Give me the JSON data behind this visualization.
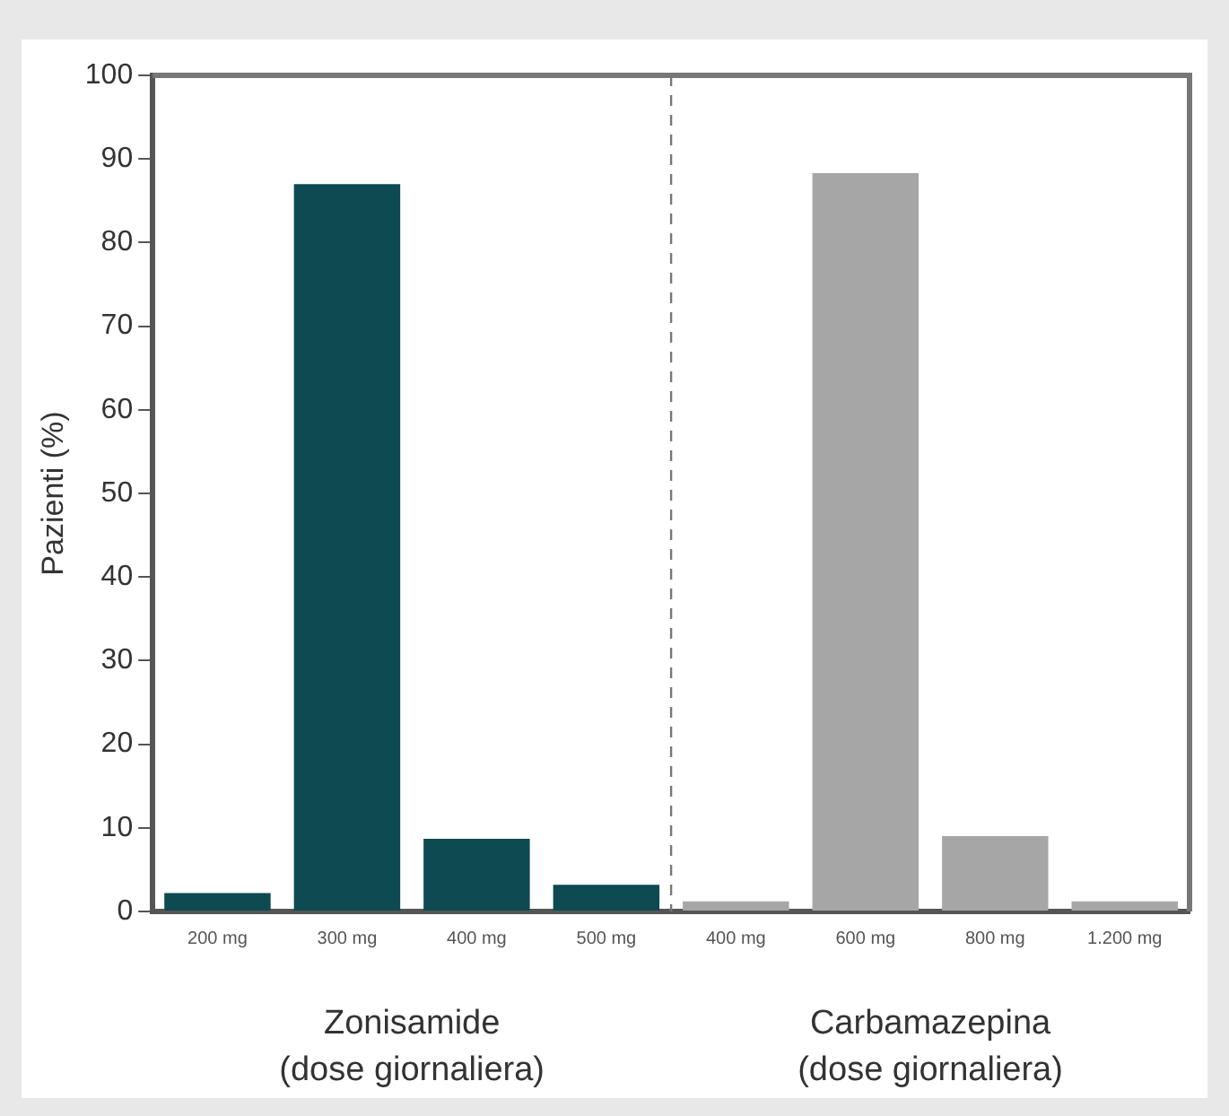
{
  "chart_data": {
    "type": "bar",
    "ylabel": "Pazienti (%)",
    "categories": [
      "200 mg",
      "300 mg",
      "400 mg",
      "500 mg",
      "400 mg",
      "600 mg",
      "800 mg",
      "1.200 mg"
    ],
    "values": [
      2.2,
      87,
      8.7,
      3.2,
      1.2,
      88.3,
      9,
      1.2
    ],
    "colors": [
      "#0d4a52",
      "#0d4a52",
      "#0d4a52",
      "#0d4a52",
      "#a6a6a6",
      "#a6a6a6",
      "#a6a6a6",
      "#a6a6a6"
    ],
    "ylim": [
      0,
      100
    ],
    "yticks": [
      0,
      10,
      20,
      30,
      40,
      50,
      60,
      70,
      80,
      90,
      100
    ],
    "grid": false,
    "legend": false,
    "annotations": [
      "Zonisamide\n(dose giornaliera)",
      "Carbamazepina\n(dose giornaliera)"
    ]
  }
}
